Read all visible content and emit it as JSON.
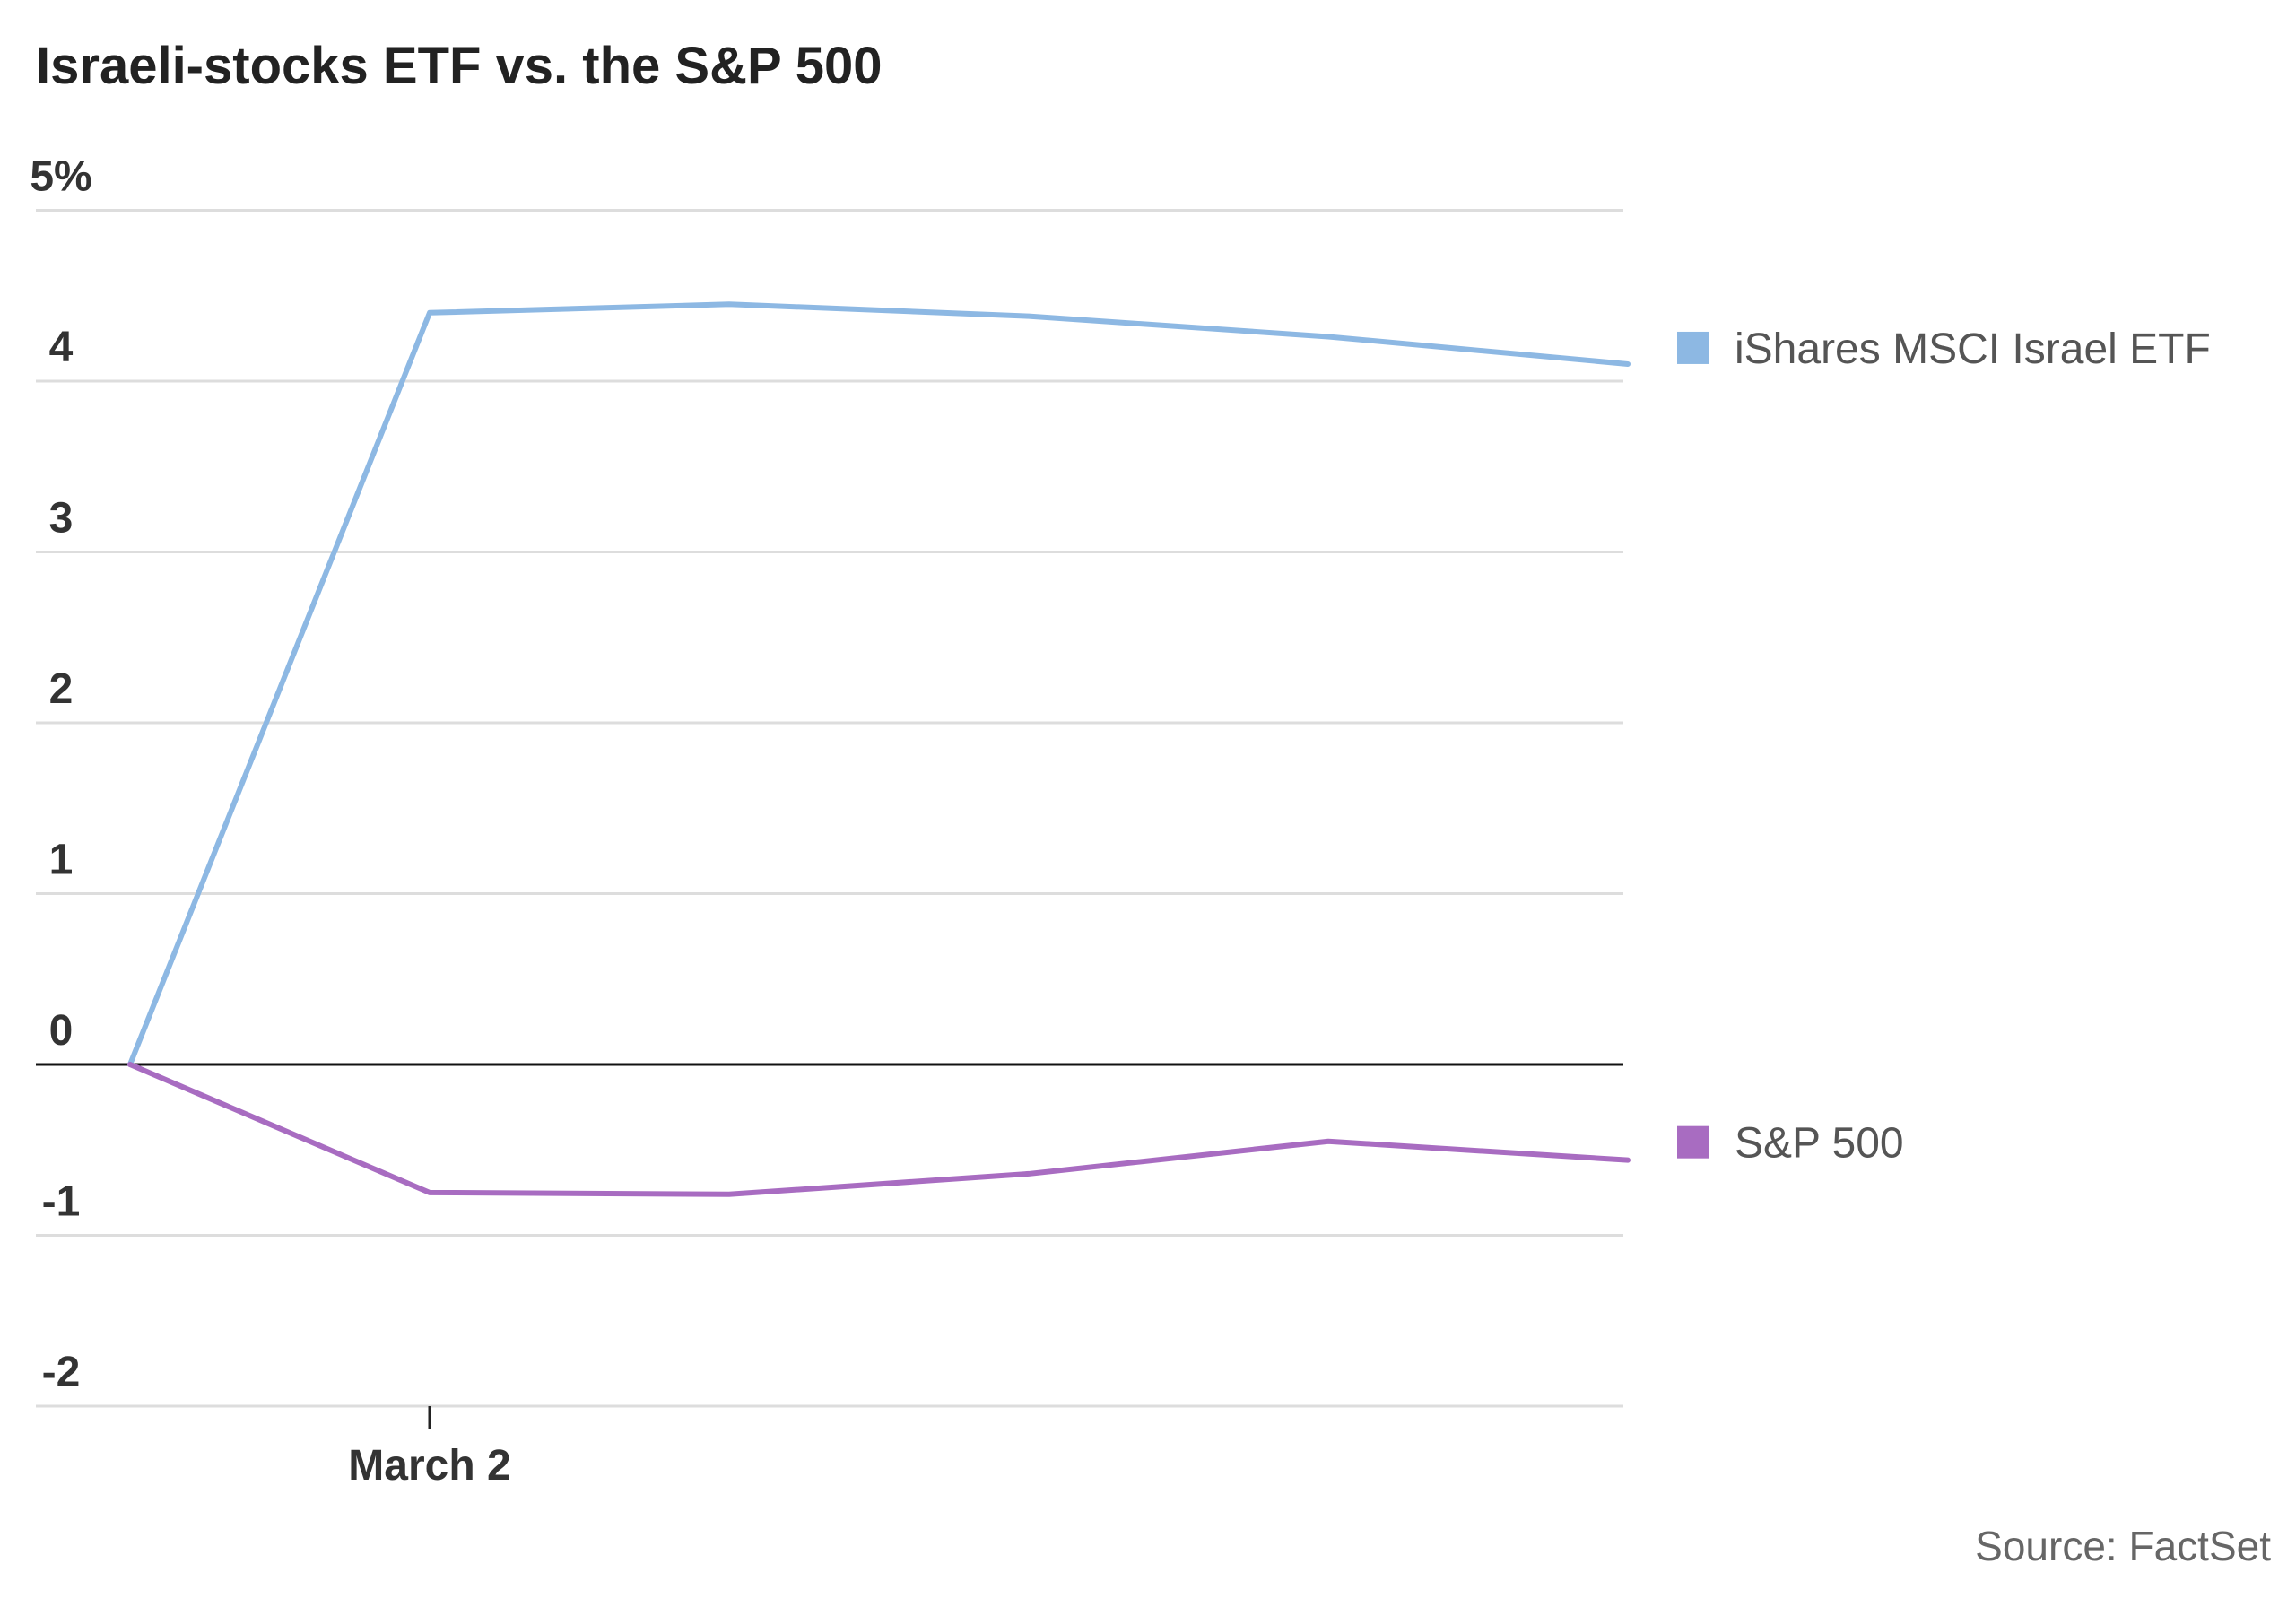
{
  "chart_data": {
    "type": "line",
    "title": "Israeli-stocks ETF vs. the S&P 500",
    "source": "Source: FactSet",
    "y_tick_labels": [
      "5%",
      "4",
      "3",
      "2",
      "1",
      "0",
      "-1",
      "-2"
    ],
    "y_tick_values": [
      5,
      4,
      3,
      2,
      1,
      0,
      -1,
      -2
    ],
    "ylim": [
      -2,
      5
    ],
    "x_tick_labels": [
      {
        "label": "March 2",
        "index": 1
      }
    ],
    "x_count": 6,
    "grid": true,
    "legend": "right",
    "series": [
      {
        "name": "iShares MSCI Israel ETF",
        "color": "#8db8e3",
        "values": [
          0.0,
          4.4,
          4.45,
          4.38,
          4.26,
          4.1
        ]
      },
      {
        "name": "S&P 500",
        "color": "#a86cc1",
        "values": [
          0.0,
          -0.75,
          -0.76,
          -0.64,
          -0.45,
          -0.56
        ]
      }
    ]
  }
}
